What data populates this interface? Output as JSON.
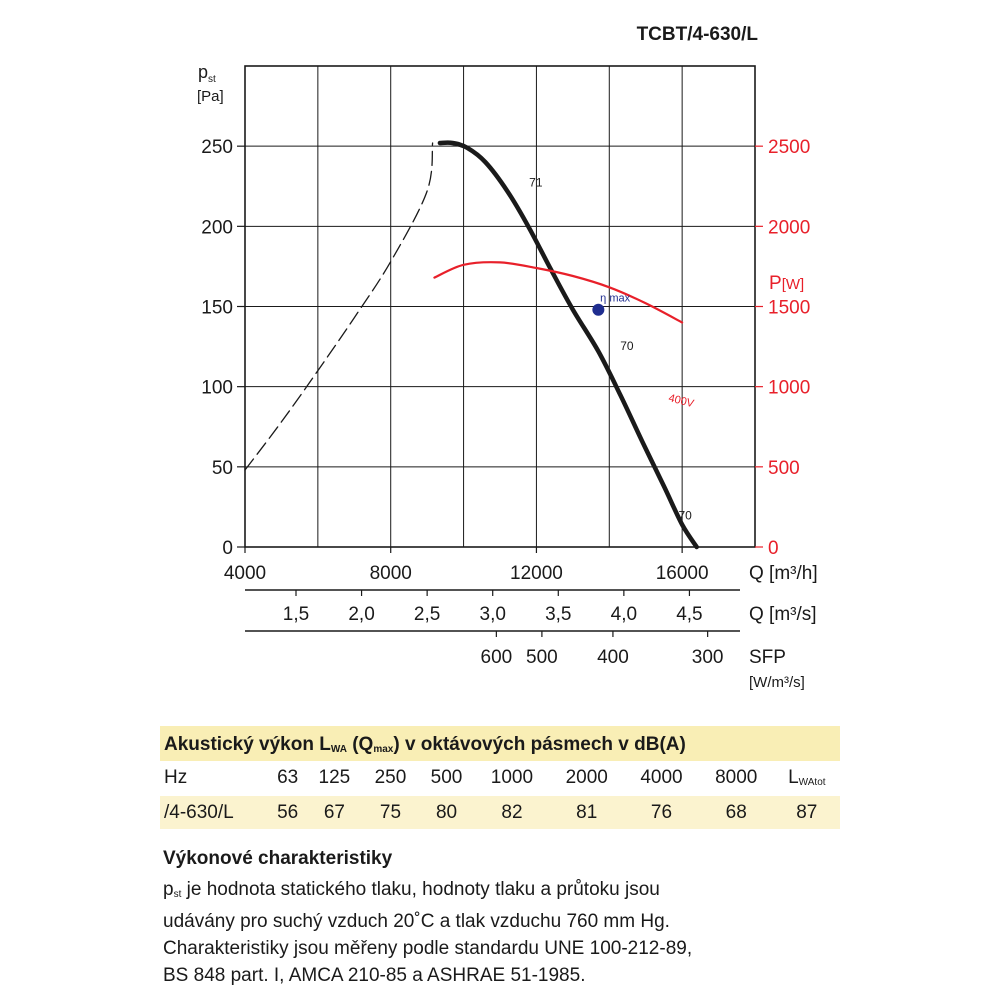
{
  "model": "TCBT/4-630/L",
  "chart_data": {
    "type": "line",
    "y_left": {
      "label": "p",
      "label_sub": "st",
      "unit": "[Pa]",
      "ticks": [
        0,
        50,
        100,
        150,
        200,
        250
      ],
      "range": [
        0,
        300
      ]
    },
    "y_right": {
      "label": "P",
      "unit": "[W]",
      "ticks": [
        0,
        500,
        1000,
        1500,
        2000,
        2500
      ],
      "range": [
        0,
        3000
      ],
      "color": "#e8202a"
    },
    "x_m3h": {
      "label": "Q [m³/h]",
      "ticks": [
        "4000",
        "8000",
        "12000",
        "16000"
      ],
      "tick_values": [
        4000,
        8000,
        12000,
        16000
      ],
      "range": [
        4000,
        18000
      ]
    },
    "x_m3s": {
      "label": "Q [m³/s]",
      "ticks": [
        "1,5",
        "2,0",
        "2,5",
        "3,0",
        "3,5",
        "4,0",
        "4,5"
      ],
      "tick_values": [
        1.5,
        2.0,
        2.5,
        3.0,
        3.5,
        4.0,
        4.5
      ]
    },
    "x_sfp": {
      "label": "SFP",
      "unit": "[W/m³/s]",
      "ticks": [
        "600",
        "500",
        "400",
        "300"
      ],
      "tick_values_m3h": [
        10900,
        12150,
        14100,
        16700
      ]
    },
    "series": [
      {
        "curve": "fan-pressure",
        "color": "#1a1a1a",
        "x": [
          9350,
          9700,
          10100,
          10600,
          11200,
          11800,
          12400,
          13000,
          13700,
          14300,
          14900,
          15500,
          16000,
          16400
        ],
        "y": [
          252,
          252,
          249,
          240,
          222,
          199,
          173,
          148,
          122,
          95,
          66,
          38,
          14,
          0
        ]
      },
      {
        "curve": "unstable-region",
        "color": "#1a1a1a",
        "dashed": true,
        "x": [
          4000,
          5000,
          6000,
          7000,
          8000,
          9000,
          9150
        ],
        "y": [
          48,
          78,
          110,
          143,
          178,
          222,
          252
        ]
      },
      {
        "name": "400V",
        "axis": "right",
        "color": "#e8202a",
        "x": [
          9200,
          10000,
          11000,
          12000,
          13000,
          14000,
          15000,
          16000
        ],
        "y": [
          1680,
          1760,
          1775,
          1740,
          1690,
          1620,
          1520,
          1400
        ]
      }
    ],
    "annotations": [
      {
        "text": "71",
        "x": 11800,
        "y": 225
      },
      {
        "text": "70",
        "x": 14300,
        "y": 123
      },
      {
        "text": "70",
        "x": 15900,
        "y": 17
      },
      {
        "text": "η max",
        "x": 13750,
        "y": 153
      }
    ],
    "eta_max": {
      "x": 13700,
      "y": 148,
      "color": "#1f2d8f"
    },
    "grid": true
  },
  "acoustic": {
    "title_main": "Akustický výkon L",
    "title_sub1": "WA",
    "title_mid": " (Q",
    "title_sub2": "max",
    "title_end": ") v oktávových pásmech v dB(A)",
    "hz_label": "Hz",
    "frequencies": [
      "63",
      "125",
      "250",
      "500",
      "1000",
      "2000",
      "4000",
      "8000"
    ],
    "total_label": "L",
    "total_sub": "WAtot",
    "row_label": "/4-630/L",
    "values": [
      "56",
      "67",
      "75",
      "80",
      "82",
      "81",
      "76",
      "68"
    ],
    "total_value": "87"
  },
  "performance": {
    "heading": "Výkonové charakteristiky",
    "p_symbol": "p",
    "p_sub": "st",
    "line1": " je hodnota statického tlaku, hodnoty tlaku a průtoku jsou",
    "line2": "udávány pro suchý vzduch 20˚C a tlak vzduchu 760 mm Hg.",
    "line3": "Charakteristiky jsou měřeny podle standardu UNE 100-212-89,",
    "line4": "BS 848 part. I, AMCA 210-85 a ASHRAE 51-1985."
  }
}
